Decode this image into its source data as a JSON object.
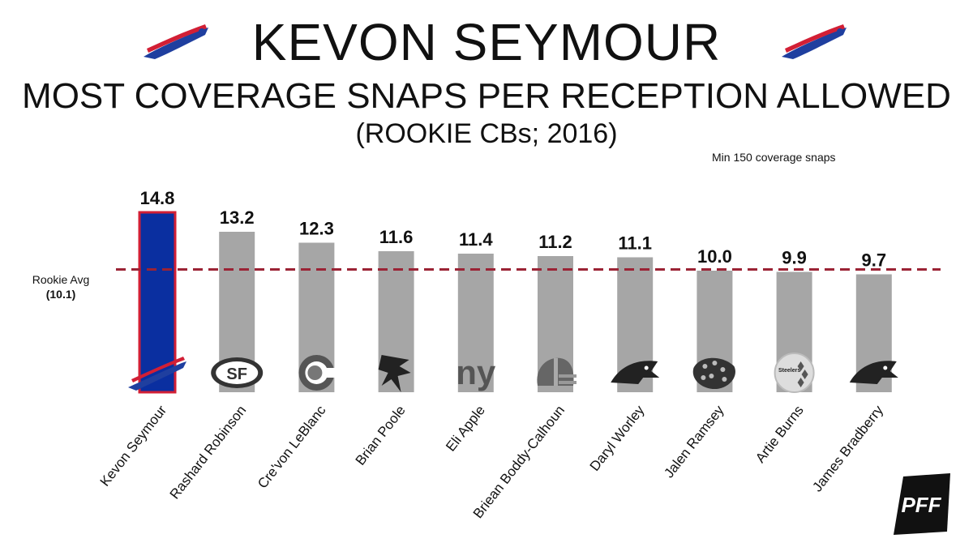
{
  "header": {
    "title": "KEVON SEYMOUR",
    "subtitle": "MOST COVERAGE SNAPS PER RECEPTION ALLOWED",
    "subtitle2": "(ROOKIE CBs; 2016)",
    "note": "Min 150 coverage snaps"
  },
  "reference": {
    "label": "Rookie Avg",
    "value_label": "(10.1)",
    "value": 10.1,
    "color": "#9b2335"
  },
  "colors": {
    "highlight": "#0a2fa0",
    "highlight_border": "#d21f35",
    "bar": "#a6a6a6",
    "bills_red": "#d21f35",
    "bills_blue": "#1f3f9f"
  },
  "chart_data": {
    "type": "bar",
    "title": "MOST COVERAGE SNAPS PER RECEPTION ALLOWED",
    "xlabel": "",
    "ylabel": "",
    "categories": [
      "Kevon Seymour",
      "Rashard Robinson",
      "Cre'von LeBlanc",
      "Brian Poole",
      "Eli Apple",
      "Briean Boddy-Calhoun",
      "Daryl Worley",
      "Jalen Ramsey",
      "Artie Burns",
      "James Bradberry"
    ],
    "values": [
      14.8,
      13.2,
      12.3,
      11.6,
      11.4,
      11.2,
      11.1,
      10.0,
      9.9,
      9.7
    ],
    "value_labels": [
      "14.8",
      "13.2",
      "12.3",
      "11.6",
      "11.4",
      "11.2",
      "11.1",
      "10.0",
      "9.9",
      "9.7"
    ],
    "team_icons": [
      "bills-icon",
      "49ers-icon",
      "bears-icon",
      "falcons-icon",
      "giants-icon",
      "browns-icon",
      "panthers-icon",
      "jaguars-icon",
      "steelers-icon",
      "panthers-icon"
    ],
    "highlight_index": 0,
    "reference_line": 10.1,
    "ylim": [
      0,
      16
    ],
    "grid": false
  },
  "icon_text": {
    "ny": "ny",
    "sf": "SF",
    "steelers": "Steelers"
  },
  "brand": {
    "pff": "PFF"
  }
}
